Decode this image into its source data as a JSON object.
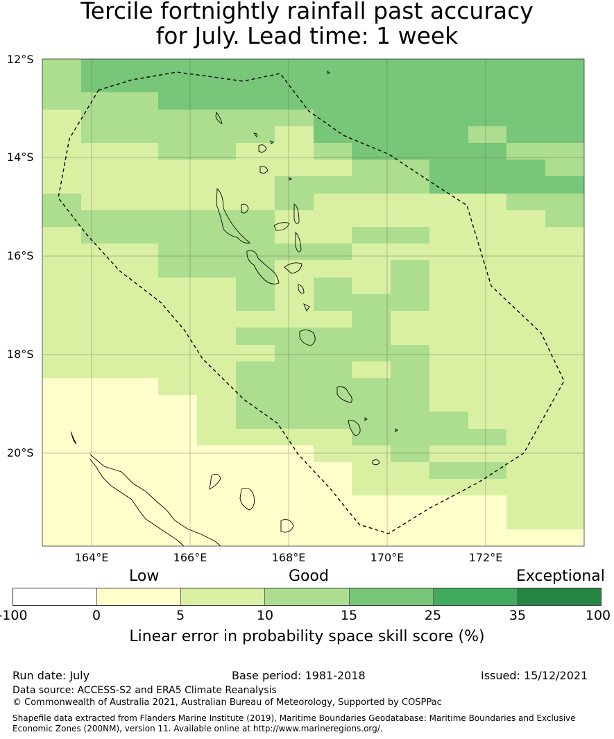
{
  "title": {
    "line1": "Tercile fortnightly rainfall past accuracy",
    "line2": "for July. Lead time: 1 week"
  },
  "map": {
    "lat_labels": [
      "12°S",
      "14°S",
      "16°S",
      "18°S",
      "20°S"
    ],
    "lon_labels": [
      "164°E",
      "166°E",
      "168°E",
      "170°E",
      "172°E"
    ]
  },
  "legend": {
    "categories": [
      "Low",
      "Good",
      "Exceptional"
    ],
    "ticks": [
      "-100",
      "0",
      "5",
      "10",
      "15",
      "25",
      "35",
      "100"
    ],
    "colors": [
      "#ffffff",
      "#ffffcc",
      "#d9f0a3",
      "#addd8e",
      "#78c679",
      "#41ab5d",
      "#238443"
    ],
    "label": "Linear error in probability space skill score (%)"
  },
  "footer": {
    "run_date": "Run date: July",
    "base_period": "Base period: 1981-2018",
    "issued": "Issued: 15/12/2021",
    "data_source": "Data source: ACCESS-S2 and ERA5 Climate Reanalysis",
    "copyright": "© Commonwealth of Australia 2021, Australian Bureau of Meteorology, Supported by COSPPac",
    "shapefile_line1": "Shapefile data extracted from Flanders Marine Institute (2019), Maritime Boundaries Geodatabase: Maritime Boundaries and Exclusive",
    "shapefile_line2": "Economic Zones (200NM), version 11. Available online at http://www.marineregions.org/."
  }
}
